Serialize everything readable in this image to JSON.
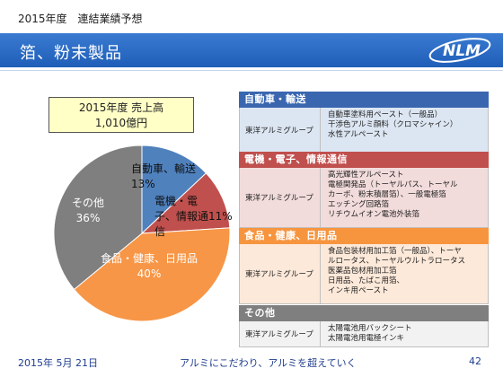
{
  "header": {
    "top_label": "2015年度　連結業績予想",
    "title": "箔、粉末製品",
    "logo_text": "NLM"
  },
  "sales_box": {
    "line1": "2015年度 売上高",
    "line2": "1,010億円"
  },
  "chart_data": {
    "type": "pie",
    "title": "2015年度 売上高 1,010億円",
    "slices": [
      {
        "label": "自動車、輸送",
        "value": 13,
        "value_text": "13%",
        "color": "#4f81bd"
      },
      {
        "label": "電機・電子、情報通信",
        "value": 11,
        "value_text": "11%",
        "color": "#c0504d"
      },
      {
        "label": "食品・健康、日用品",
        "value": 40,
        "value_text": "40%",
        "color": "#f79646"
      },
      {
        "label": "その他",
        "value": 36,
        "value_text": "36%",
        "color": "#7f7f7f"
      }
    ]
  },
  "table": {
    "sections": [
      {
        "heading": "自動車・輸送",
        "group": "東洋アルミグループ",
        "items": [
          "自動車塗料用ペースト（一般品）",
          "干渉色アルミ顔料（クロマシャイン）",
          "水性アルペースト"
        ]
      },
      {
        "heading": "電機・電子、情報通信",
        "group": "東洋アルミグループ",
        "items": [
          "高光輝性アルペースト",
          "電極関発品（トーヤルパス、トーヤル",
          "カーボ、粉末積層箔）、一般電極箔",
          "エッチング回路箔",
          "リチウムイオン電池外装箔"
        ]
      },
      {
        "heading": "食品・健康、日用品",
        "group": "東洋アルミグループ",
        "items": [
          "食品包装材用加工箔（一般品）、トーヤ",
          "ルロータス、トーヤルウルトラロータス",
          "医薬品包材用加工箔",
          "日用品、たばこ用箔、",
          "インキ用ペースト"
        ]
      },
      {
        "heading": "その他",
        "group": "東洋アルミグループ",
        "items": [
          "太陽電池用バックシート",
          "太陽電池用電極インキ"
        ]
      }
    ]
  },
  "footer": {
    "date": "2015年 5月 21日",
    "slogan": "アルミにこだわり、アルミを超えていく",
    "page": "42"
  }
}
